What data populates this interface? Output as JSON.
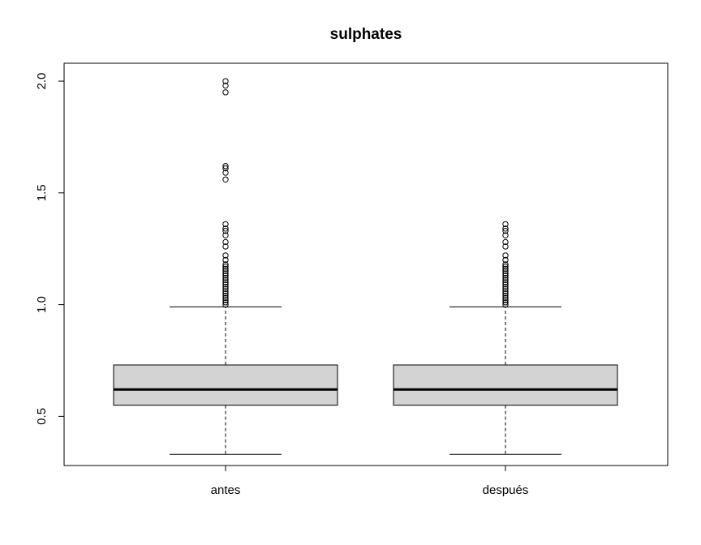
{
  "chart_data": {
    "type": "boxplot",
    "title": "sulphates",
    "xlabel": "",
    "ylabel": "",
    "ylim": [
      0.28,
      2.08
    ],
    "yticks": [
      0.5,
      1.0,
      1.5,
      2.0
    ],
    "ytick_labels": [
      "0.5",
      "1.0",
      "1.5",
      "2.0"
    ],
    "box_fill": "#d3d3d3",
    "categories": [
      "antes",
      "después"
    ],
    "boxes": [
      {
        "name": "antes",
        "whisker_low": 0.33,
        "q1": 0.55,
        "median": 0.62,
        "q3": 0.73,
        "whisker_high": 0.99,
        "outliers": [
          1.0,
          1.01,
          1.02,
          1.03,
          1.04,
          1.05,
          1.06,
          1.07,
          1.08,
          1.09,
          1.1,
          1.11,
          1.12,
          1.13,
          1.14,
          1.15,
          1.16,
          1.17,
          1.18,
          1.2,
          1.22,
          1.26,
          1.28,
          1.31,
          1.33,
          1.34,
          1.36,
          1.56,
          1.59,
          1.61,
          1.62,
          1.95,
          1.98,
          2.0
        ]
      },
      {
        "name": "después",
        "whisker_low": 0.33,
        "q1": 0.55,
        "median": 0.62,
        "q3": 0.73,
        "whisker_high": 0.99,
        "outliers": [
          1.0,
          1.01,
          1.02,
          1.03,
          1.04,
          1.05,
          1.06,
          1.07,
          1.08,
          1.09,
          1.1,
          1.11,
          1.12,
          1.13,
          1.14,
          1.15,
          1.16,
          1.17,
          1.18,
          1.2,
          1.22,
          1.26,
          1.28,
          1.31,
          1.33,
          1.34,
          1.36
        ]
      }
    ]
  }
}
